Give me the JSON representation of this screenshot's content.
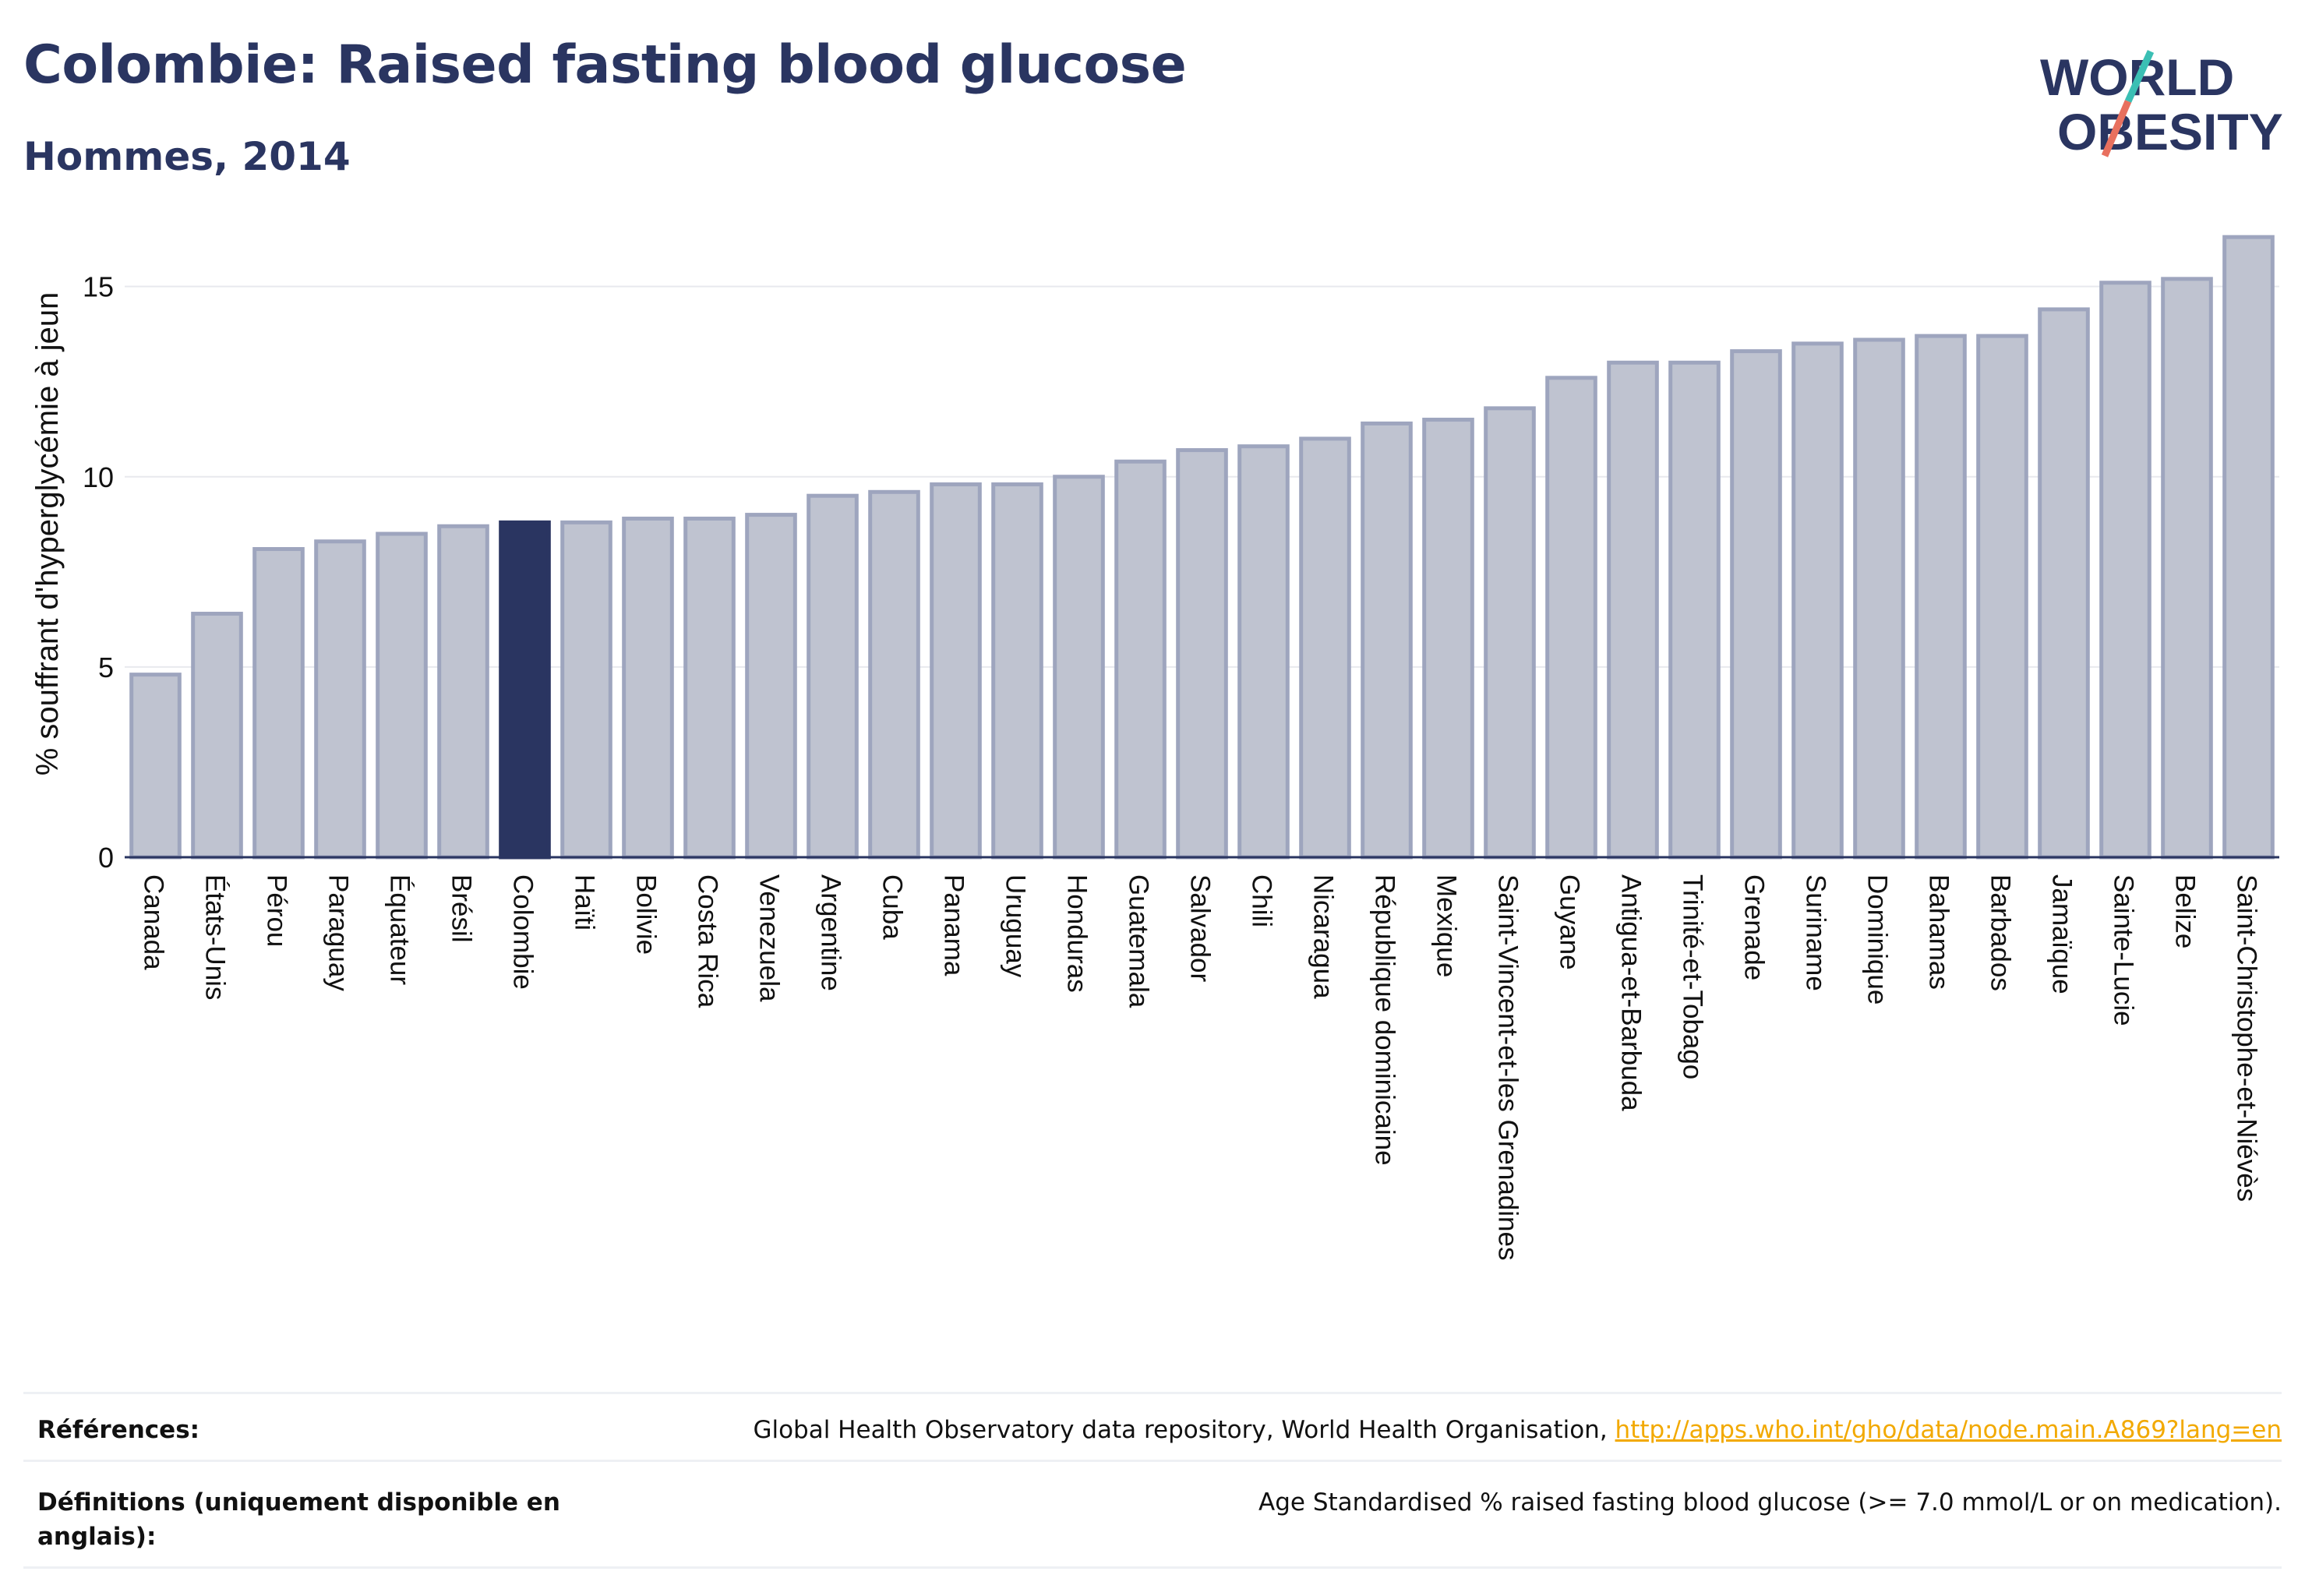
{
  "header": {
    "title": "Colombie: Raised fasting blood glucose",
    "subtitle": "Hommes, 2014"
  },
  "logo": {
    "line1": "WORLD",
    "line2": "OBESITY",
    "colors": {
      "text": "#2a3561",
      "slash_top": "#3bbfb4",
      "slash_bottom": "#e8705e"
    }
  },
  "chart_data": {
    "type": "bar",
    "title": "",
    "xlabel": "",
    "ylabel": "% souffrant d'hyperglycémie à jeun",
    "ylim": [
      0,
      17
    ],
    "yticks": [
      0,
      5,
      10,
      15
    ],
    "grid": true,
    "legend": "none",
    "highlight": "Colombie",
    "colors": {
      "bar": "#bfc3d0",
      "bar_edge": "#9ea5be",
      "highlight": "#2a3561"
    },
    "categories": [
      "Canada",
      "États-Unis",
      "Pérou",
      "Paraguay",
      "Équateur",
      "Brésil",
      "Colombie",
      "Haïti",
      "Bolivie",
      "Costa Rica",
      "Venezuela",
      "Argentine",
      "Cuba",
      "Panama",
      "Uruguay",
      "Honduras",
      "Guatemala",
      "Salvador",
      "Chili",
      "Nicaragua",
      "République dominicaine",
      "Mexique",
      "Saint-Vincent-et-les Grenadines",
      "Guyane",
      "Antigua-et-Barbuda",
      "Trinité-et-Tobago",
      "Grenade",
      "Suriname",
      "Dominique",
      "Bahamas",
      "Barbados",
      "Jamaïque",
      "Sainte-Lucie",
      "Belize",
      "Saint-Christophe-et-Niévès"
    ],
    "values": [
      4.8,
      6.4,
      8.1,
      8.3,
      8.5,
      8.7,
      8.8,
      8.8,
      8.9,
      8.9,
      9.0,
      9.5,
      9.6,
      9.8,
      9.8,
      10.0,
      10.4,
      10.7,
      10.8,
      11.0,
      11.4,
      11.5,
      11.8,
      12.6,
      13.0,
      13.0,
      13.3,
      13.5,
      13.6,
      13.7,
      13.7,
      14.4,
      15.1,
      15.2,
      16.3
    ]
  },
  "footer": {
    "references_label": "Références:",
    "references_text": "Global Health Observatory data repository, World Health Organisation, ",
    "references_link": "http://apps.who.int/gho/data/node.main.A869?lang=en",
    "definitions_label": "Définitions (uniquement disponible en anglais):",
    "definitions_text": "Age Standardised % raised fasting blood glucose (>= 7.0 mmol/L or on medication)."
  }
}
